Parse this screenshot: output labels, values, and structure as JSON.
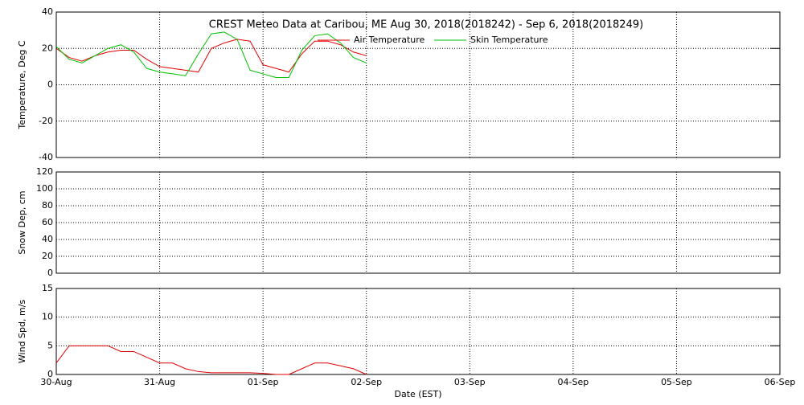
{
  "chart_data": [
    {
      "type": "line",
      "title": "CREST Meteo Data at Caribou, ME   Aug 30, 2018(2018242) - Sep  6, 2018(2018249)",
      "ylabel": "Temperature, Deg C",
      "ylim": [
        -40,
        40
      ],
      "yticks": [
        -40,
        -20,
        0,
        20,
        40
      ],
      "grid": true,
      "x": [
        0,
        0.125,
        0.25,
        0.375,
        0.5,
        0.625,
        0.75,
        0.875,
        1,
        1.125,
        1.25,
        1.375,
        1.5,
        1.625,
        1.75,
        1.875,
        2,
        2.125,
        2.25,
        2.375,
        2.5,
        2.625,
        2.75,
        2.875,
        3
      ],
      "series": [
        {
          "name": "Air Temperature",
          "color": "#e00000",
          "values": [
            20,
            15,
            13,
            16,
            18,
            19,
            19,
            14,
            10,
            9,
            8,
            7,
            20,
            23,
            25,
            24,
            11,
            9,
            7,
            17,
            24,
            24,
            22,
            18,
            16
          ]
        },
        {
          "name": "Skin Temperature",
          "color": "#00c000",
          "values": [
            21,
            14,
            12,
            16,
            20,
            22,
            18,
            9,
            7,
            6,
            5,
            17,
            28,
            29,
            25,
            8,
            6,
            4,
            4,
            19,
            27,
            28,
            23,
            15,
            12
          ]
        }
      ]
    },
    {
      "type": "line",
      "ylabel": "Snow Dep, cm",
      "ylim": [
        0,
        120
      ],
      "yticks": [
        0,
        20,
        40,
        60,
        80,
        100,
        120
      ],
      "grid": true
    },
    {
      "type": "line",
      "ylabel": "Wind Spd, m/s",
      "xlabel": "Date (EST)",
      "ylim": [
        0,
        15
      ],
      "yticks": [
        0,
        5,
        10,
        15
      ],
      "grid": true,
      "xlim": [
        0,
        7
      ],
      "xticks": [
        {
          "value": 0,
          "label": "30-Aug"
        },
        {
          "value": 1,
          "label": "31-Aug"
        },
        {
          "value": 2,
          "label": "01-Sep"
        },
        {
          "value": 3,
          "label": "02-Sep"
        },
        {
          "value": 4,
          "label": "03-Sep"
        },
        {
          "value": 5,
          "label": "04-Sep"
        },
        {
          "value": 6,
          "label": "05-Sep"
        },
        {
          "value": 7,
          "label": "06-Sep"
        }
      ],
      "x": [
        0,
        0.125,
        0.25,
        0.375,
        0.5,
        0.625,
        0.75,
        0.875,
        1,
        1.125,
        1.25,
        1.375,
        1.5,
        1.625,
        1.75,
        1.875,
        2,
        2.125,
        2.25,
        2.375,
        2.5,
        2.625,
        2.75,
        2.875,
        3
      ],
      "series": [
        {
          "name": "Wind Speed",
          "color": "#e00000",
          "values": [
            2,
            5,
            5,
            5,
            5,
            4,
            4,
            3,
            2,
            2,
            1,
            0.5,
            0.3,
            0.3,
            0.3,
            0.3,
            0.2,
            0,
            0,
            1,
            2,
            2,
            1.5,
            1,
            0
          ]
        }
      ]
    }
  ]
}
